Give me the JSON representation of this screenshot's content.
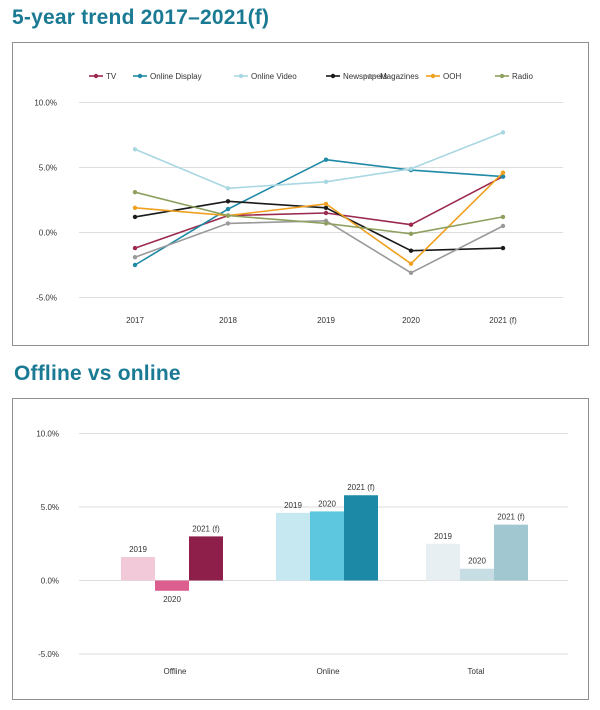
{
  "titles": {
    "trend": "5-year trend 2017–2021(f)",
    "offline_online": "Offline vs online"
  },
  "chart_data": [
    {
      "type": "line",
      "title": "5-year trend 2017–2021(f)",
      "categories": [
        "2017",
        "2018",
        "2019",
        "2020",
        "2021 (f)"
      ],
      "yticks": [
        "10.0%",
        "5.0%",
        "0.0%",
        "-5.0%"
      ],
      "ylim": [
        -5,
        10
      ],
      "grid": true,
      "legend": "top",
      "series": [
        {
          "name": "TV",
          "color": "#9b2a4e",
          "values": [
            -1.2,
            1.3,
            1.5,
            0.6,
            4.3
          ]
        },
        {
          "name": "Online Display",
          "color": "#1f8aa6",
          "values": [
            -2.5,
            1.8,
            5.6,
            4.8,
            4.3
          ]
        },
        {
          "name": "Online Video",
          "color": "#a9d7e2",
          "values": [
            6.4,
            3.4,
            3.9,
            4.9,
            7.7
          ]
        },
        {
          "name": "Newspapers",
          "color": "#1a1a1a",
          "values": [
            1.2,
            2.4,
            1.9,
            -1.4,
            -1.2
          ]
        },
        {
          "name": "Magazines",
          "color": "#9a9a9a",
          "values": [
            -1.9,
            0.7,
            0.9,
            -3.1,
            0.5
          ]
        },
        {
          "name": "OOH",
          "color": "#f0a01e",
          "values": [
            1.9,
            1.3,
            2.2,
            -2.4,
            4.6
          ]
        },
        {
          "name": "Radio",
          "color": "#8ea05e",
          "values": [
            3.1,
            1.3,
            0.7,
            -0.1,
            1.2
          ]
        }
      ]
    },
    {
      "type": "bar",
      "title": "Offline vs online",
      "categories": [
        "Offline",
        "Online",
        "Total"
      ],
      "yticks": [
        "10.0%",
        "5.0%",
        "0.0%",
        "-5.0%"
      ],
      "ylim": [
        -5,
        10
      ],
      "grid": true,
      "series": [
        {
          "name": "2019",
          "values": [
            1.6,
            4.6,
            2.5
          ],
          "colors": [
            "#f2c9d8",
            "#c6e8f1",
            "#e7eff2"
          ]
        },
        {
          "name": "2020",
          "values": [
            -0.7,
            4.7,
            0.8
          ],
          "colors": [
            "#dc5e8e",
            "#5ec7e0",
            "#c6dde3"
          ]
        },
        {
          "name": "2021 (f)",
          "values": [
            3.0,
            5.8,
            3.8
          ],
          "colors": [
            "#8e1f4a",
            "#1c8aa6",
            "#a1c8d1"
          ]
        }
      ]
    }
  ]
}
